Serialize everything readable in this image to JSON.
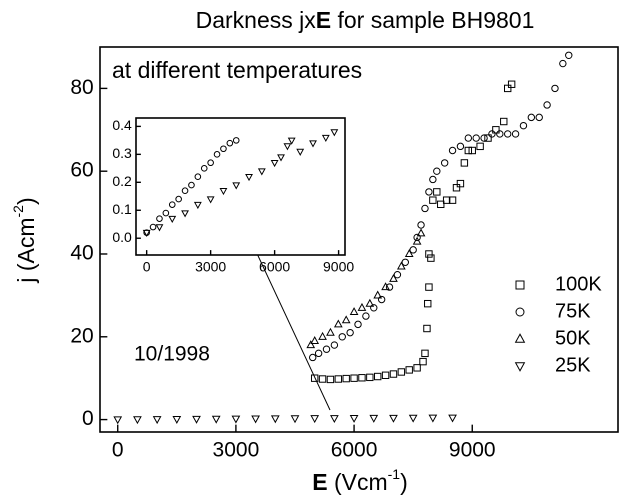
{
  "chart_data": [
    {
      "type": "scatter",
      "title": [
        "Darkness jx",
        "E",
        " for sample BH9801"
      ],
      "xlabel": [
        "E",
        " (Vcm",
        "-1",
        ")"
      ],
      "ylabel": [
        "j (Acm",
        "-2",
        ")"
      ],
      "annotations": [
        "at different temperatures",
        "10/1998"
      ],
      "xlim": [
        -450,
        12700
      ],
      "ylim": [
        -3,
        90
      ],
      "xticks": [
        0,
        3000,
        6000,
        9000
      ],
      "yticks": [
        0,
        20,
        40,
        60,
        80
      ],
      "legend": "right",
      "series": [
        {
          "name": "100K",
          "marker": "square",
          "color": "#000000",
          "x": [
            5000,
            5200,
            5400,
            5600,
            5800,
            6000,
            6200,
            6400,
            6600,
            6800,
            7000,
            7200,
            7400,
            7600,
            7750,
            7800,
            7850,
            7870,
            7900,
            7900,
            7950,
            8000,
            8100,
            8200,
            8350,
            8500,
            8600,
            8700,
            8800,
            8900,
            9000,
            9200,
            9400,
            9600,
            9800,
            9900,
            10000
          ],
          "values": [
            10,
            9.8,
            9.7,
            9.8,
            9.9,
            10,
            10.1,
            10.2,
            10.4,
            10.7,
            11,
            11.5,
            12,
            12.5,
            14,
            16,
            22,
            28,
            32,
            40,
            39,
            53,
            55,
            52,
            53,
            53,
            56,
            57,
            62,
            65,
            65,
            66,
            68,
            70,
            72,
            80,
            81
          ]
        },
        {
          "name": "75K",
          "marker": "circle",
          "color": "#000000",
          "x": [
            4950,
            5100,
            5300,
            5500,
            5700,
            5900,
            6100,
            6300,
            6500,
            6700,
            6900,
            7100,
            7300,
            7500,
            7600,
            7700,
            7800,
            7900,
            8000,
            8100,
            8300,
            8500,
            8700,
            8900,
            9100,
            9300,
            9500,
            9700,
            9900,
            10100,
            10300,
            10500,
            10700,
            10900,
            11100,
            11300,
            11450
          ],
          "values": [
            15,
            16,
            17,
            18,
            20,
            21,
            23,
            25,
            27,
            29,
            32,
            35,
            38,
            41,
            44,
            47,
            51,
            55,
            58,
            60,
            62,
            65,
            66,
            68,
            68,
            68,
            69,
            69,
            69,
            69,
            71,
            73,
            73,
            76,
            80,
            86,
            88
          ]
        },
        {
          "name": "50K",
          "marker": "triangle",
          "color": "#000000",
          "x": [
            4900,
            5000,
            5200,
            5400,
            5600,
            5800,
            6000,
            6200,
            6400,
            6600,
            6800,
            7000,
            7200,
            7400,
            7600,
            7700
          ],
          "values": [
            18,
            19,
            20,
            21,
            23,
            24,
            26,
            27,
            28,
            30,
            32,
            34,
            37,
            40,
            43,
            45
          ]
        },
        {
          "name": "25K",
          "marker": "triangle-down",
          "color": "#000000",
          "x": [
            0,
            500,
            1000,
            1500,
            2000,
            2500,
            3000,
            3500,
            4000,
            4500,
            5000,
            5500,
            6000,
            6500,
            7000,
            7500,
            8000,
            8500
          ],
          "values": [
            0.05,
            0.07,
            0.09,
            0.12,
            0.15,
            0.18,
            0.21,
            0.24,
            0.27,
            0.3,
            0.33,
            0.35,
            0.37,
            0.39,
            0.41,
            0.43,
            0.45,
            0.47
          ]
        }
      ]
    },
    {
      "type": "scatter",
      "xlim": [
        -500,
        9300
      ],
      "ylim": [
        -0.06,
        0.43
      ],
      "xticks": [
        0,
        3000,
        6000,
        9000
      ],
      "yticks": [
        {
          "value": 0,
          "label": "0.0"
        },
        0.1,
        0.2,
        0.3,
        0.4
      ],
      "series": [
        {
          "marker": "circle",
          "color": "#000000",
          "x": [
            0,
            300,
            600,
            900,
            1200,
            1500,
            1800,
            2100,
            2400,
            2700,
            3000,
            3300,
            3600,
            3900,
            4200
          ],
          "values": [
            0.02,
            0.04,
            0.07,
            0.09,
            0.12,
            0.14,
            0.17,
            0.19,
            0.22,
            0.25,
            0.27,
            0.3,
            0.32,
            0.34,
            0.35
          ]
        },
        {
          "marker": "triangle-down",
          "color": "#000000",
          "x": [
            0,
            600,
            1200,
            1800,
            2400,
            3000,
            3600,
            4200,
            4800,
            5400,
            6000,
            6300,
            6600,
            6800,
            7200,
            7800,
            8400,
            8800
          ],
          "values": [
            0.02,
            0.04,
            0.07,
            0.09,
            0.12,
            0.14,
            0.17,
            0.19,
            0.22,
            0.24,
            0.27,
            0.29,
            0.33,
            0.35,
            0.31,
            0.34,
            0.36,
            0.38
          ]
        }
      ]
    }
  ]
}
